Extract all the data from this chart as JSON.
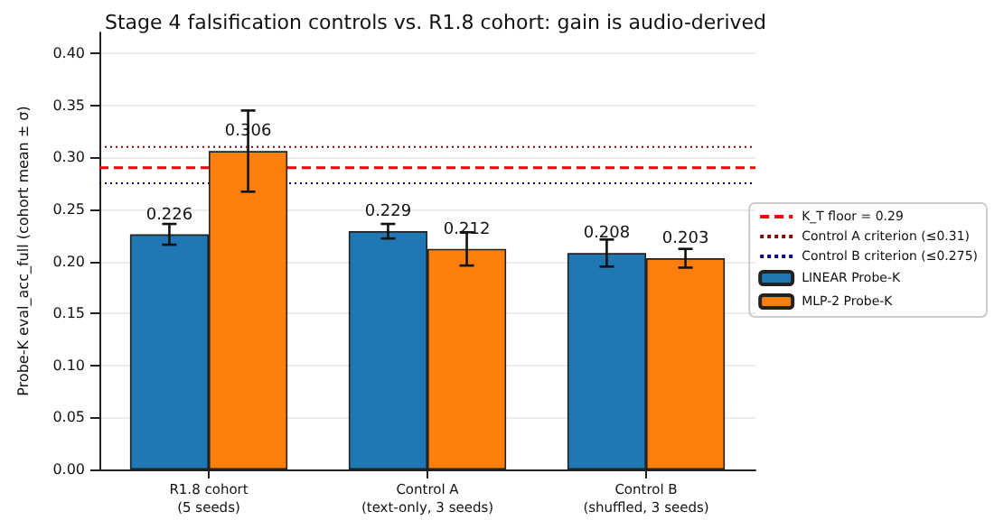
{
  "chart_data": {
    "type": "bar",
    "title": "Stage 4 falsification controls vs. R1.8 cohort: gain is audio-derived",
    "ylabel": "Probe-K eval_acc_full (cohort mean ± σ)",
    "categories": [
      "R1.8 cohort\n(5 seeds)",
      "Control A\n(text-only, 3 seeds)",
      "Control B\n(shuffled, 3 seeds)"
    ],
    "series": [
      {
        "name": "LINEAR Probe-K",
        "color": "#1f77b4",
        "values": [
          0.226,
          0.229,
          0.208
        ],
        "errors": [
          0.01,
          0.007,
          0.013
        ]
      },
      {
        "name": "MLP-2 Probe-K",
        "color": "#ff7f0e",
        "values": [
          0.306,
          0.212,
          0.203
        ],
        "errors": [
          0.039,
          0.016,
          0.009
        ]
      }
    ],
    "ref_lines": [
      {
        "axis": "y",
        "value": 0.29,
        "label": "K_T floor = 0.29",
        "color": "#ff0000",
        "line_style": "dashed"
      },
      {
        "axis": "y",
        "value": 0.31,
        "label": "Control A criterion (≤0.31)",
        "color": "#8b0000",
        "line_style": "dotted"
      },
      {
        "axis": "y",
        "value": 0.275,
        "label": "Control B criterion (≤0.275)",
        "color": "#00008b",
        "line_style": "dotted"
      }
    ],
    "ylim": [
      0,
      0.42
    ],
    "yticks": [
      {
        "value": 0,
        "label": "0.00"
      },
      {
        "value": 0.05,
        "label": "0.05"
      },
      {
        "value": 0.1,
        "label": "0.10"
      },
      {
        "value": 0.15,
        "label": "0.15"
      },
      {
        "value": 0.2,
        "label": "0.20"
      },
      {
        "value": 0.25,
        "label": "0.25"
      },
      {
        "value": 0.3,
        "label": "0.30"
      },
      {
        "value": 0.35,
        "label": "0.35"
      },
      {
        "value": 0.4,
        "label": "0.40"
      }
    ],
    "data_labels": true,
    "grid": "y",
    "legend": "right"
  }
}
